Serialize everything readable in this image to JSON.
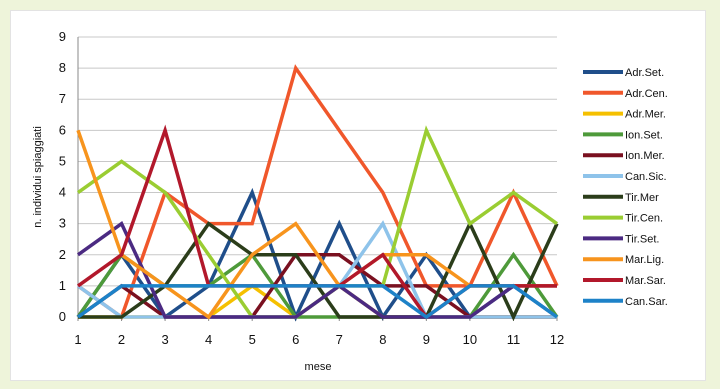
{
  "chart_data": {
    "type": "line",
    "x": [
      1,
      2,
      3,
      4,
      5,
      6,
      7,
      8,
      9,
      10,
      11,
      12
    ],
    "xlabel": "mese",
    "ylabel": "n. individui spiaggiati",
    "ylim": [
      0,
      9
    ],
    "yticks": [
      0,
      1,
      2,
      3,
      4,
      5,
      6,
      7,
      8,
      9
    ],
    "grid": true,
    "legend_position": "right",
    "series": [
      {
        "name": "Adr.Set.",
        "color": "#1f4e8a",
        "values": [
          0,
          2,
          0,
          1,
          4,
          0,
          3,
          0,
          2,
          0,
          1,
          0
        ]
      },
      {
        "name": "Adr.Cen.",
        "color": "#f0572b",
        "values": [
          1,
          0,
          4,
          3,
          3,
          8,
          6,
          4,
          1,
          1,
          4,
          1
        ]
      },
      {
        "name": "Adr.Mer.",
        "color": "#f5c000",
        "values": [
          0,
          0,
          0,
          0,
          1,
          0,
          1,
          0,
          0,
          0,
          0,
          0
        ]
      },
      {
        "name": "Ion.Set.",
        "color": "#4e9a3a",
        "values": [
          0,
          2,
          1,
          1,
          2,
          0,
          0,
          0,
          0,
          0,
          2,
          0
        ]
      },
      {
        "name": "Ion.Mer.",
        "color": "#7a1020",
        "values": [
          0,
          1,
          0,
          0,
          0,
          2,
          2,
          1,
          1,
          0,
          0,
          0
        ]
      },
      {
        "name": "Can.Sic.",
        "color": "#8ec3ea",
        "values": [
          1,
          0,
          0,
          0,
          0,
          0,
          1,
          3,
          0,
          0,
          0,
          0
        ]
      },
      {
        "name": "Tir.Mer",
        "color": "#2b3d1a",
        "values": [
          0,
          0,
          1,
          3,
          2,
          2,
          0,
          0,
          0,
          3,
          0,
          3
        ]
      },
      {
        "name": "Tir.Cen.",
        "color": "#9acd32",
        "values": [
          4,
          5,
          4,
          2,
          0,
          0,
          1,
          1,
          6,
          3,
          4,
          3
        ]
      },
      {
        "name": "Tir.Set.",
        "color": "#4b2a82",
        "values": [
          2,
          3,
          0,
          0,
          0,
          0,
          1,
          0,
          0,
          0,
          1,
          1
        ]
      },
      {
        "name": "Mar.Lig.",
        "color": "#f7941d",
        "values": [
          6,
          2,
          1,
          0,
          2,
          3,
          1,
          2,
          2,
          1,
          1,
          1
        ]
      },
      {
        "name": "Mar.Sar.",
        "color": "#b2182b",
        "values": [
          1,
          2,
          6,
          1,
          1,
          1,
          1,
          2,
          0,
          1,
          1,
          1
        ]
      },
      {
        "name": "Can.Sar.",
        "color": "#1d82c8",
        "values": [
          0,
          1,
          1,
          1,
          1,
          1,
          1,
          1,
          0,
          1,
          1,
          0
        ]
      }
    ]
  }
}
